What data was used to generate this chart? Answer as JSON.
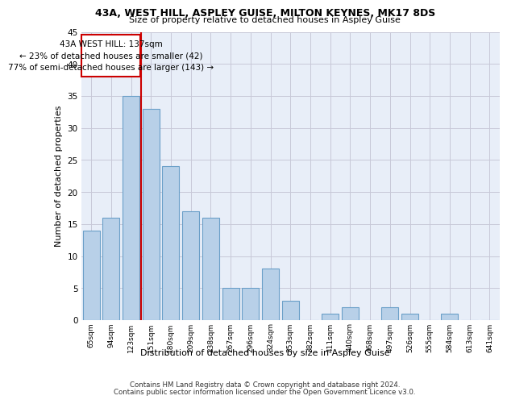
{
  "title1": "43A, WEST HILL, ASPLEY GUISE, MILTON KEYNES, MK17 8DS",
  "title2": "Size of property relative to detached houses in Aspley Guise",
  "xlabel": "Distribution of detached houses by size in Aspley Guise",
  "ylabel": "Number of detached properties",
  "categories": [
    "65sqm",
    "94sqm",
    "123sqm",
    "151sqm",
    "180sqm",
    "209sqm",
    "238sqm",
    "267sqm",
    "296sqm",
    "324sqm",
    "353sqm",
    "382sqm",
    "411sqm",
    "440sqm",
    "468sqm",
    "497sqm",
    "526sqm",
    "555sqm",
    "584sqm",
    "613sqm",
    "641sqm"
  ],
  "values": [
    14,
    16,
    35,
    33,
    24,
    17,
    16,
    5,
    5,
    8,
    3,
    0,
    1,
    2,
    0,
    2,
    1,
    0,
    1,
    0,
    0
  ],
  "bar_color": "#b8d0e8",
  "bar_edge_color": "#6a9fc8",
  "grid_color": "#c8c8d8",
  "bg_color": "#e8eef8",
  "annotation_text1": "43A WEST HILL: 137sqm",
  "annotation_text2": "← 23% of detached houses are smaller (42)",
  "annotation_text3": "77% of semi-detached houses are larger (143) →",
  "annotation_box_color": "#ffffff",
  "annotation_border_color": "#cc0000",
  "property_line_color": "#cc0000",
  "footnote1": "Contains HM Land Registry data © Crown copyright and database right 2024.",
  "footnote2": "Contains public sector information licensed under the Open Government Licence v3.0.",
  "ylim": [
    0,
    45
  ],
  "yticks": [
    0,
    5,
    10,
    15,
    20,
    25,
    30,
    35,
    40,
    45
  ]
}
